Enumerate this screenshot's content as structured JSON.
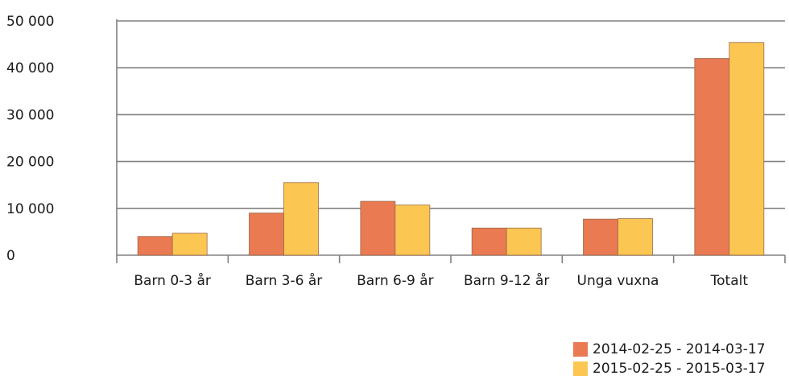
{
  "colors": {
    "series_1": "#e97a52",
    "series_2": "#fcc652",
    "gridline": "#808080",
    "axis": "#808080",
    "bar_stroke": "#9a6a4a"
  },
  "chart_data": {
    "type": "bar",
    "categories": [
      "Barn 0-3 år",
      "Barn 3-6 år",
      "Barn 6-9 år",
      "Barn 9-12 år",
      "Unga vuxna",
      "Totalt"
    ],
    "series": [
      {
        "name": "2014-02-25 - 2014-03-17",
        "values": [
          4000,
          9000,
          11500,
          5800,
          7700,
          42000
        ]
      },
      {
        "name": "2015-02-25 - 2015-03-17",
        "values": [
          4700,
          15500,
          10700,
          5800,
          7800,
          45400
        ]
      }
    ],
    "yticks": [
      "0",
      "10 000",
      "20 000",
      "30 000",
      "40 000",
      "50 000"
    ],
    "ylim": [
      0,
      50000
    ],
    "grid": true,
    "legend_position": "bottom-right",
    "title": "",
    "xlabel": "",
    "ylabel": ""
  }
}
